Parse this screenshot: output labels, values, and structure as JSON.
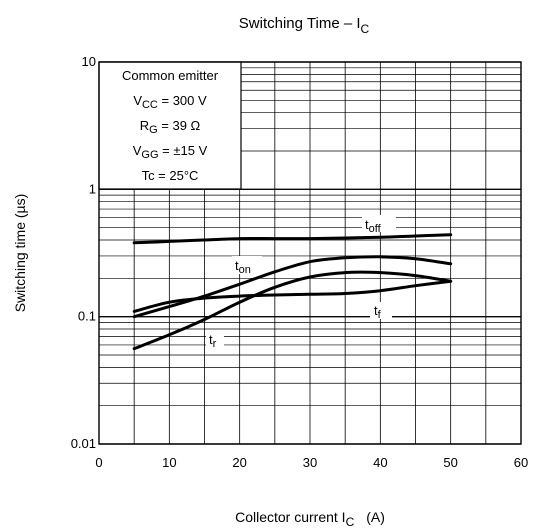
{
  "chart_data": {
    "type": "line",
    "title": "Switching Time – I",
    "title_sub": "C",
    "xlabel": "Collector current   I",
    "xlabel_sub": "C",
    "xlabel_unit": "(A)",
    "ylabel": "Switching time   (µs)",
    "x_scale": "linear",
    "y_scale": "log",
    "xlim": [
      0,
      60
    ],
    "ylim": [
      0.01,
      10
    ],
    "grid": true,
    "x_ticks": [
      "0",
      "10",
      "20",
      "30",
      "40",
      "50",
      "60"
    ],
    "y_ticks": [
      "0.01",
      "0.1",
      "1",
      "10"
    ],
    "conditions": {
      "line1": "Common emitter",
      "line2_main": "V",
      "line2_sub": "CC",
      "line2_rest": " = 300 V",
      "line3_main": "R",
      "line3_sub": "G",
      "line3_rest": " = 39 Ω",
      "line4_main": "V",
      "line4_sub": "GG",
      "line4_rest": " = ±15 V",
      "line5": "Tc = 25°C"
    },
    "series": [
      {
        "name": "toff",
        "label_main": "t",
        "label_sub": "off",
        "x": [
          5,
          10,
          15,
          20,
          25,
          30,
          35,
          40,
          45,
          50
        ],
        "y": [
          0.38,
          0.39,
          0.4,
          0.41,
          0.41,
          0.41,
          0.415,
          0.42,
          0.43,
          0.44
        ]
      },
      {
        "name": "ton",
        "label_main": "t",
        "label_sub": "on",
        "x": [
          5,
          10,
          15,
          20,
          25,
          30,
          35,
          40,
          45,
          50
        ],
        "y": [
          0.1,
          0.12,
          0.145,
          0.18,
          0.225,
          0.27,
          0.29,
          0.295,
          0.285,
          0.26
        ]
      },
      {
        "name": "tf",
        "label_main": "t",
        "label_sub": "f",
        "x": [
          5,
          10,
          15,
          20,
          25,
          30,
          35,
          40,
          45,
          50
        ],
        "y": [
          0.11,
          0.13,
          0.14,
          0.145,
          0.148,
          0.15,
          0.152,
          0.16,
          0.175,
          0.19
        ]
      },
      {
        "name": "tr",
        "label_main": "t",
        "label_sub": "r",
        "x": [
          5,
          10,
          15,
          20,
          25,
          30,
          35,
          40,
          45,
          50
        ],
        "y": [
          0.056,
          0.072,
          0.095,
          0.13,
          0.17,
          0.205,
          0.222,
          0.222,
          0.21,
          0.19
        ]
      }
    ]
  }
}
